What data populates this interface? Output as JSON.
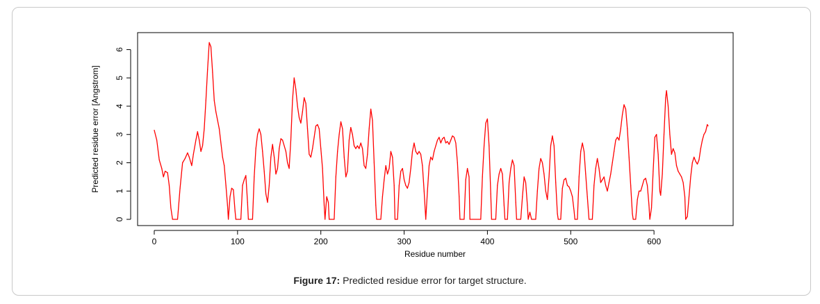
{
  "figure": {
    "caption_label": "Figure 17:",
    "caption_text": " Predicted residue error for target structure."
  },
  "chart_data": {
    "type": "line",
    "xlabel": "Residue number",
    "ylabel": "Predicted residue error [Angstrom]",
    "xlim": [
      -20,
      695
    ],
    "ylim": [
      -0.22,
      6.6
    ],
    "x_ticks": [
      0,
      100,
      200,
      300,
      400,
      500,
      600
    ],
    "y_ticks": [
      0,
      1,
      2,
      3,
      4,
      5,
      6
    ],
    "grid": false,
    "series": [
      {
        "color": "#ff0000",
        "points": [
          [
            0,
            3.15
          ],
          [
            3,
            2.8
          ],
          [
            6,
            2.1
          ],
          [
            9,
            1.8
          ],
          [
            11,
            1.5
          ],
          [
            13,
            1.7
          ],
          [
            16,
            1.65
          ],
          [
            18,
            1.2
          ],
          [
            20,
            0.4
          ],
          [
            22,
            0
          ],
          [
            28,
            0
          ],
          [
            31,
            1.1
          ],
          [
            34,
            2.0
          ],
          [
            37,
            2.15
          ],
          [
            40,
            2.35
          ],
          [
            42,
            2.2
          ],
          [
            45,
            1.9
          ],
          [
            47,
            2.3
          ],
          [
            50,
            2.8
          ],
          [
            52,
            3.1
          ],
          [
            54,
            2.8
          ],
          [
            56,
            2.4
          ],
          [
            58,
            2.6
          ],
          [
            60,
            3.2
          ],
          [
            62,
            4.2
          ],
          [
            64,
            5.3
          ],
          [
            66,
            6.25
          ],
          [
            68,
            6.1
          ],
          [
            70,
            5.2
          ],
          [
            72,
            4.2
          ],
          [
            74,
            3.8
          ],
          [
            76,
            3.5
          ],
          [
            78,
            3.2
          ],
          [
            80,
            2.7
          ],
          [
            82,
            2.2
          ],
          [
            84,
            1.9
          ],
          [
            86,
            1.2
          ],
          [
            88,
            0.5
          ],
          [
            89,
            0
          ],
          [
            91,
            0.8
          ],
          [
            93,
            1.1
          ],
          [
            95,
            1.05
          ],
          [
            97,
            0.3
          ],
          [
            98,
            0
          ],
          [
            104,
            0
          ],
          [
            106,
            1.2
          ],
          [
            108,
            1.4
          ],
          [
            110,
            1.55
          ],
          [
            112,
            0.6
          ],
          [
            113,
            0
          ],
          [
            118,
            0
          ],
          [
            120,
            1.5
          ],
          [
            122,
            2.5
          ],
          [
            124,
            3.0
          ],
          [
            126,
            3.2
          ],
          [
            128,
            3.0
          ],
          [
            130,
            2.4
          ],
          [
            132,
            1.7
          ],
          [
            134,
            0.9
          ],
          [
            136,
            0.6
          ],
          [
            138,
            1.2
          ],
          [
            140,
            2.2
          ],
          [
            142,
            2.65
          ],
          [
            144,
            2.2
          ],
          [
            146,
            1.6
          ],
          [
            148,
            1.8
          ],
          [
            150,
            2.5
          ],
          [
            152,
            2.85
          ],
          [
            154,
            2.8
          ],
          [
            156,
            2.6
          ],
          [
            158,
            2.4
          ],
          [
            160,
            2.0
          ],
          [
            162,
            1.8
          ],
          [
            164,
            2.8
          ],
          [
            166,
            4.2
          ],
          [
            168,
            5.0
          ],
          [
            170,
            4.6
          ],
          [
            172,
            4.0
          ],
          [
            174,
            3.6
          ],
          [
            176,
            3.4
          ],
          [
            178,
            3.8
          ],
          [
            180,
            4.3
          ],
          [
            182,
            4.1
          ],
          [
            184,
            3.2
          ],
          [
            186,
            2.3
          ],
          [
            188,
            2.2
          ],
          [
            190,
            2.5
          ],
          [
            192,
            2.9
          ],
          [
            194,
            3.3
          ],
          [
            196,
            3.35
          ],
          [
            198,
            3.2
          ],
          [
            200,
            2.5
          ],
          [
            202,
            1.8
          ],
          [
            204,
            0.5
          ],
          [
            205,
            0
          ],
          [
            207,
            0.8
          ],
          [
            209,
            0.6
          ],
          [
            210,
            0
          ],
          [
            216,
            0
          ],
          [
            218,
            1.5
          ],
          [
            220,
            2.4
          ],
          [
            222,
            3.0
          ],
          [
            224,
            3.45
          ],
          [
            226,
            3.2
          ],
          [
            228,
            2.2
          ],
          [
            230,
            1.5
          ],
          [
            232,
            1.7
          ],
          [
            234,
            2.8
          ],
          [
            236,
            3.25
          ],
          [
            238,
            3.0
          ],
          [
            240,
            2.6
          ],
          [
            242,
            2.5
          ],
          [
            244,
            2.6
          ],
          [
            246,
            2.5
          ],
          [
            248,
            2.7
          ],
          [
            250,
            2.5
          ],
          [
            252,
            1.9
          ],
          [
            254,
            1.8
          ],
          [
            256,
            2.3
          ],
          [
            258,
            3.2
          ],
          [
            260,
            3.9
          ],
          [
            262,
            3.5
          ],
          [
            264,
            2.0
          ],
          [
            266,
            0.5
          ],
          [
            267,
            0
          ],
          [
            272,
            0
          ],
          [
            274,
            0.8
          ],
          [
            276,
            1.4
          ],
          [
            278,
            1.9
          ],
          [
            280,
            1.6
          ],
          [
            282,
            1.8
          ],
          [
            284,
            2.4
          ],
          [
            286,
            2.2
          ],
          [
            288,
            1.2
          ],
          [
            289,
            0
          ],
          [
            292,
            0
          ],
          [
            294,
            1.2
          ],
          [
            296,
            1.7
          ],
          [
            298,
            1.8
          ],
          [
            300,
            1.4
          ],
          [
            302,
            1.2
          ],
          [
            304,
            1.1
          ],
          [
            306,
            1.3
          ],
          [
            308,
            1.8
          ],
          [
            310,
            2.4
          ],
          [
            312,
            2.7
          ],
          [
            314,
            2.4
          ],
          [
            316,
            2.3
          ],
          [
            318,
            2.4
          ],
          [
            320,
            2.3
          ],
          [
            322,
            1.9
          ],
          [
            324,
            1.0
          ],
          [
            326,
            0
          ],
          [
            328,
            1.0
          ],
          [
            330,
            1.9
          ],
          [
            332,
            2.2
          ],
          [
            334,
            2.1
          ],
          [
            336,
            2.4
          ],
          [
            338,
            2.6
          ],
          [
            340,
            2.8
          ],
          [
            342,
            2.9
          ],
          [
            344,
            2.7
          ],
          [
            346,
            2.85
          ],
          [
            348,
            2.9
          ],
          [
            350,
            2.7
          ],
          [
            352,
            2.75
          ],
          [
            354,
            2.65
          ],
          [
            356,
            2.8
          ],
          [
            358,
            2.95
          ],
          [
            360,
            2.9
          ],
          [
            362,
            2.7
          ],
          [
            364,
            2.0
          ],
          [
            366,
            0.8
          ],
          [
            367,
            0
          ],
          [
            372,
            0
          ],
          [
            374,
            1.4
          ],
          [
            376,
            1.8
          ],
          [
            378,
            1.5
          ],
          [
            379,
            0
          ],
          [
            392,
            0
          ],
          [
            394,
            1.5
          ],
          [
            396,
            2.6
          ],
          [
            398,
            3.4
          ],
          [
            400,
            3.55
          ],
          [
            402,
            2.6
          ],
          [
            404,
            0.9
          ],
          [
            405,
            0
          ],
          [
            410,
            0
          ],
          [
            412,
            1.2
          ],
          [
            414,
            1.6
          ],
          [
            416,
            1.8
          ],
          [
            418,
            1.6
          ],
          [
            420,
            0.5
          ],
          [
            421,
            0
          ],
          [
            424,
            0
          ],
          [
            426,
            1.3
          ],
          [
            428,
            1.8
          ],
          [
            430,
            2.1
          ],
          [
            432,
            1.9
          ],
          [
            434,
            0.6
          ],
          [
            435,
            0
          ],
          [
            440,
            0
          ],
          [
            442,
            0.8
          ],
          [
            444,
            1.5
          ],
          [
            446,
            1.3
          ],
          [
            448,
            0.5
          ],
          [
            449,
            0
          ],
          [
            451,
            0.25
          ],
          [
            453,
            0
          ],
          [
            458,
            0
          ],
          [
            460,
            1.0
          ],
          [
            462,
            1.8
          ],
          [
            464,
            2.15
          ],
          [
            466,
            2.0
          ],
          [
            468,
            1.6
          ],
          [
            470,
            1.0
          ],
          [
            472,
            0.7
          ],
          [
            474,
            1.5
          ],
          [
            476,
            2.6
          ],
          [
            478,
            2.95
          ],
          [
            480,
            2.6
          ],
          [
            482,
            1.3
          ],
          [
            484,
            0.2
          ],
          [
            485,
            0
          ],
          [
            488,
            0
          ],
          [
            490,
            1.1
          ],
          [
            492,
            1.4
          ],
          [
            494,
            1.45
          ],
          [
            496,
            1.2
          ],
          [
            498,
            1.15
          ],
          [
            500,
            1.0
          ],
          [
            502,
            0.8
          ],
          [
            504,
            0.3
          ],
          [
            505,
            0
          ],
          [
            508,
            0
          ],
          [
            510,
            1.5
          ],
          [
            512,
            2.4
          ],
          [
            514,
            2.7
          ],
          [
            516,
            2.4
          ],
          [
            518,
            1.6
          ],
          [
            520,
            0.8
          ],
          [
            522,
            0
          ],
          [
            526,
            0
          ],
          [
            528,
            1.2
          ],
          [
            530,
            1.8
          ],
          [
            532,
            2.15
          ],
          [
            534,
            1.8
          ],
          [
            536,
            1.3
          ],
          [
            538,
            1.4
          ],
          [
            540,
            1.5
          ],
          [
            542,
            1.2
          ],
          [
            544,
            1.0
          ],
          [
            546,
            1.3
          ],
          [
            548,
            1.6
          ],
          [
            550,
            2.0
          ],
          [
            552,
            2.4
          ],
          [
            554,
            2.8
          ],
          [
            556,
            2.9
          ],
          [
            558,
            2.8
          ],
          [
            560,
            3.2
          ],
          [
            562,
            3.7
          ],
          [
            564,
            4.05
          ],
          [
            566,
            3.9
          ],
          [
            568,
            3.2
          ],
          [
            570,
            2.2
          ],
          [
            572,
            1.2
          ],
          [
            574,
            0.2
          ],
          [
            575,
            0
          ],
          [
            578,
            0
          ],
          [
            580,
            0.7
          ],
          [
            582,
            1.0
          ],
          [
            584,
            1.0
          ],
          [
            586,
            1.2
          ],
          [
            588,
            1.4
          ],
          [
            590,
            1.45
          ],
          [
            592,
            1.2
          ],
          [
            594,
            0.5
          ],
          [
            595,
            0
          ],
          [
            597,
            0.4
          ],
          [
            599,
            1.7
          ],
          [
            601,
            2.9
          ],
          [
            603,
            3.0
          ],
          [
            605,
            2.3
          ],
          [
            607,
            1.0
          ],
          [
            608,
            0.85
          ],
          [
            610,
            1.6
          ],
          [
            612,
            3.0
          ],
          [
            614,
            4.3
          ],
          [
            615,
            4.55
          ],
          [
            617,
            4.0
          ],
          [
            619,
            3.0
          ],
          [
            621,
            2.3
          ],
          [
            623,
            2.5
          ],
          [
            625,
            2.35
          ],
          [
            627,
            1.9
          ],
          [
            629,
            1.7
          ],
          [
            631,
            1.6
          ],
          [
            633,
            1.5
          ],
          [
            635,
            1.3
          ],
          [
            637,
            0.8
          ],
          [
            638,
            0
          ],
          [
            640,
            0.1
          ],
          [
            642,
            0.8
          ],
          [
            644,
            1.5
          ],
          [
            646,
            2.0
          ],
          [
            648,
            2.2
          ],
          [
            650,
            2.05
          ],
          [
            652,
            1.95
          ],
          [
            654,
            2.1
          ],
          [
            656,
            2.5
          ],
          [
            658,
            2.8
          ],
          [
            660,
            3.0
          ],
          [
            662,
            3.1
          ],
          [
            664,
            3.35
          ],
          [
            665,
            3.3
          ]
        ]
      }
    ]
  }
}
